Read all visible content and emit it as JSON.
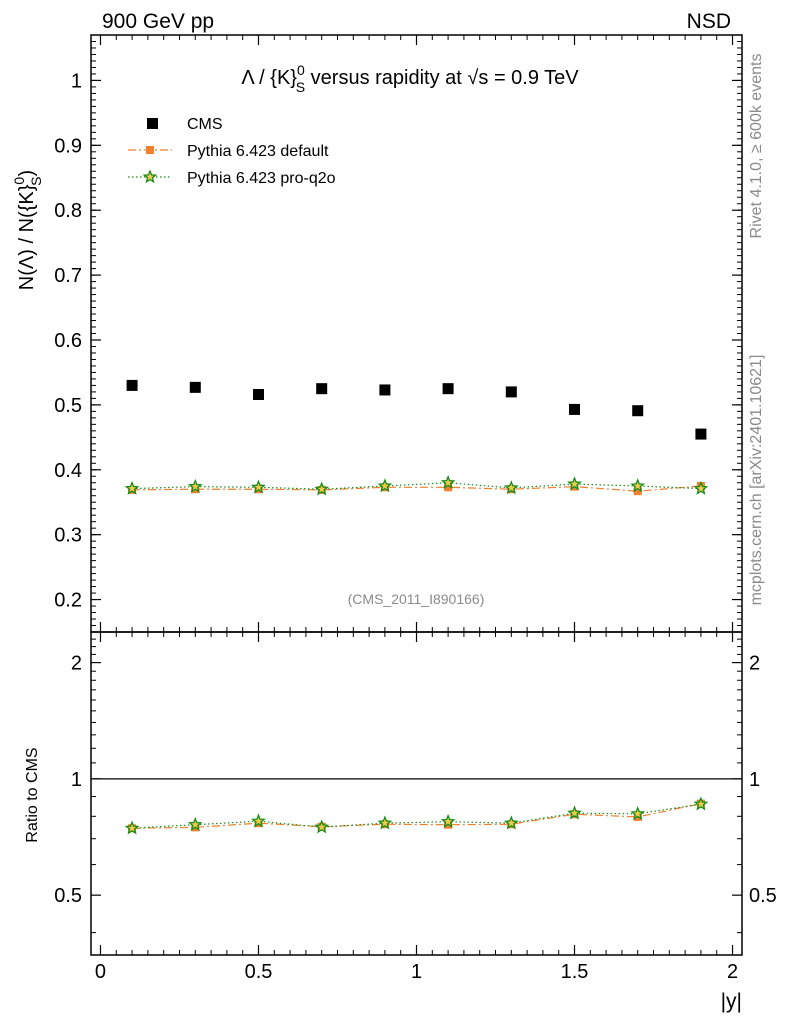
{
  "header": {
    "left": "900 GeV pp",
    "right": "NSD"
  },
  "side_labels": {
    "rivet": "Rivet 4.1.0, ≥ 600k events",
    "mcplots": "mcplots.cern.ch [arXiv:2401.10621]"
  },
  "watermark": "(CMS_2011_I890166)",
  "chart_data": [
    {
      "type": "scatter",
      "title": "Λ / {K}S0 versus rapidity at √s = 0.9 TeV",
      "title_parts": {
        "pre": "Λ / {K}",
        "sup": "0",
        "sub": "S",
        "mid": " versus rapidity at ",
        "sqrt": "√s",
        "post": " = 0.9 TeV"
      },
      "ylabel": "N(Λ)  /  N({K}S0)",
      "ylabel_parts": {
        "pre": "N(Λ)  /  N({K}",
        "sup": "0",
        "sub": "S",
        "post": ")"
      },
      "xlim": [
        -0.03,
        2.03
      ],
      "ylim": [
        0.15,
        1.07
      ],
      "yticks": [
        0.2,
        0.3,
        0.4,
        0.5,
        0.6,
        0.7,
        0.8,
        0.9,
        1
      ],
      "ytick_labels": [
        "0.2",
        "0.3",
        "0.4",
        "0.5",
        "0.6",
        "0.7",
        "0.8",
        "0.9",
        "1"
      ],
      "x": [
        0.1,
        0.3,
        0.5,
        0.7,
        0.9,
        1.1,
        1.3,
        1.5,
        1.7,
        1.9
      ],
      "series": [
        {
          "name": "CMS",
          "color": "#000000",
          "marker": "square",
          "values": [
            0.53,
            0.527,
            0.516,
            0.525,
            0.523,
            0.525,
            0.52,
            0.493,
            0.491,
            0.455
          ]
        },
        {
          "name": "Pythia 6.423 default",
          "color": "#f08030",
          "marker": "square-small",
          "values": [
            0.369,
            0.37,
            0.37,
            0.369,
            0.373,
            0.373,
            0.37,
            0.374,
            0.367,
            0.375
          ]
        },
        {
          "name": "Pythia 6.423 pro-q2o",
          "color": "#178c17",
          "marker": "star",
          "values": [
            0.371,
            0.374,
            0.373,
            0.37,
            0.375,
            0.38,
            0.372,
            0.378,
            0.375,
            0.371
          ]
        }
      ],
      "legend_position": "top-left"
    },
    {
      "type": "line",
      "ylabel": "Ratio to CMS",
      "xlabel": "|y|",
      "xlim": [
        -0.03,
        2.03
      ],
      "ylim": [
        0.35,
        2.4
      ],
      "yticks": [
        0.5,
        1,
        2
      ],
      "ytick_labels": [
        "0.5",
        "1",
        "2"
      ],
      "xticks": [
        0,
        0.5,
        1,
        1.5,
        2
      ],
      "xtick_labels": [
        "0",
        "0.5",
        "1",
        "1.5",
        "2"
      ],
      "reference_line": 1,
      "x": [
        0.1,
        0.3,
        0.5,
        0.7,
        0.9,
        1.1,
        1.3,
        1.5,
        1.7,
        1.9
      ],
      "series": [
        {
          "name": "Pythia 6.423 default",
          "color": "#f08030",
          "marker": "square-small",
          "values": [
            0.745,
            0.749,
            0.768,
            0.752,
            0.763,
            0.761,
            0.763,
            0.81,
            0.797,
            0.863
          ]
        },
        {
          "name": "Pythia 6.423 pro-q2o",
          "color": "#178c17",
          "marker": "star",
          "values": [
            0.745,
            0.761,
            0.777,
            0.75,
            0.768,
            0.775,
            0.768,
            0.815,
            0.812,
            0.86
          ]
        }
      ]
    }
  ]
}
